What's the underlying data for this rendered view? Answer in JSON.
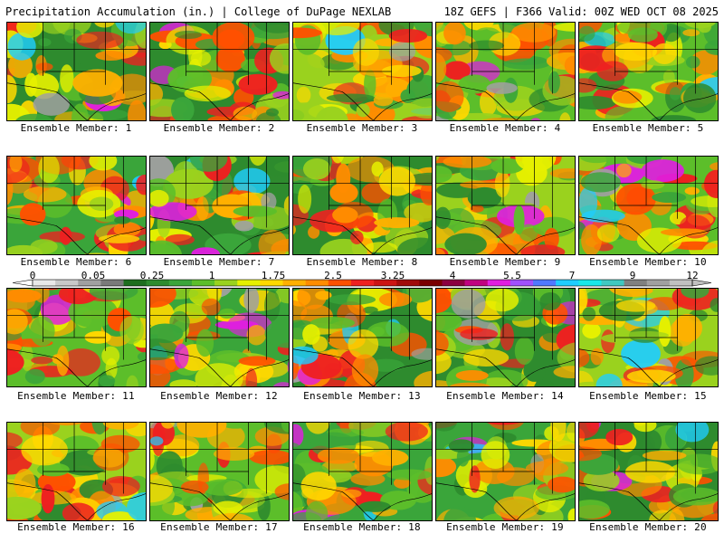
{
  "header": {
    "left_title": "Precipitation Accumulation (in.) | College of DuPage NEXLAB",
    "right_title": "18Z GEFS | F366 Valid: 00Z WED OCT 08 2025"
  },
  "panels": [
    {
      "label": "Ensemble Member: 1"
    },
    {
      "label": "Ensemble Member: 2"
    },
    {
      "label": "Ensemble Member: 3"
    },
    {
      "label": "Ensemble Member: 4"
    },
    {
      "label": "Ensemble Member: 5"
    },
    {
      "label": "Ensemble Member: 6"
    },
    {
      "label": "Ensemble Member: 7"
    },
    {
      "label": "Ensemble Member: 8"
    },
    {
      "label": "Ensemble Member: 9"
    },
    {
      "label": "Ensemble Member: 10"
    },
    {
      "label": "Ensemble Member: 11"
    },
    {
      "label": "Ensemble Member: 12"
    },
    {
      "label": "Ensemble Member: 13"
    },
    {
      "label": "Ensemble Member: 14"
    },
    {
      "label": "Ensemble Member: 15"
    },
    {
      "label": "Ensemble Member: 16"
    },
    {
      "label": "Ensemble Member: 17"
    },
    {
      "label": "Ensemble Member: 18"
    },
    {
      "label": "Ensemble Member: 19"
    },
    {
      "label": "Ensemble Member: 20"
    }
  ],
  "colorbar": {
    "tick_labels": [
      "0",
      "0.05",
      "0.25",
      "1",
      "1.75",
      "2.5",
      "3.25",
      "4",
      "5.5",
      "7",
      "9",
      "12"
    ],
    "colors": [
      "#e8e8e8",
      "#c8c8c8",
      "#a0a0a0",
      "#7a7a7a",
      "#1e6e1e",
      "#2e8b2e",
      "#3aa53a",
      "#5cbe2a",
      "#9ad21e",
      "#e6f000",
      "#ffd800",
      "#ffb000",
      "#ff8c00",
      "#ff5000",
      "#ee2020",
      "#cc1414",
      "#a00a0a",
      "#7a0000",
      "#8b0040",
      "#c00080",
      "#e01ee0",
      "#a050ff",
      "#5078ff",
      "#1ecdff",
      "#18e8e8",
      "#40c8c0",
      "#808080",
      "#a0a0a0",
      "#c0c0c0"
    ]
  }
}
